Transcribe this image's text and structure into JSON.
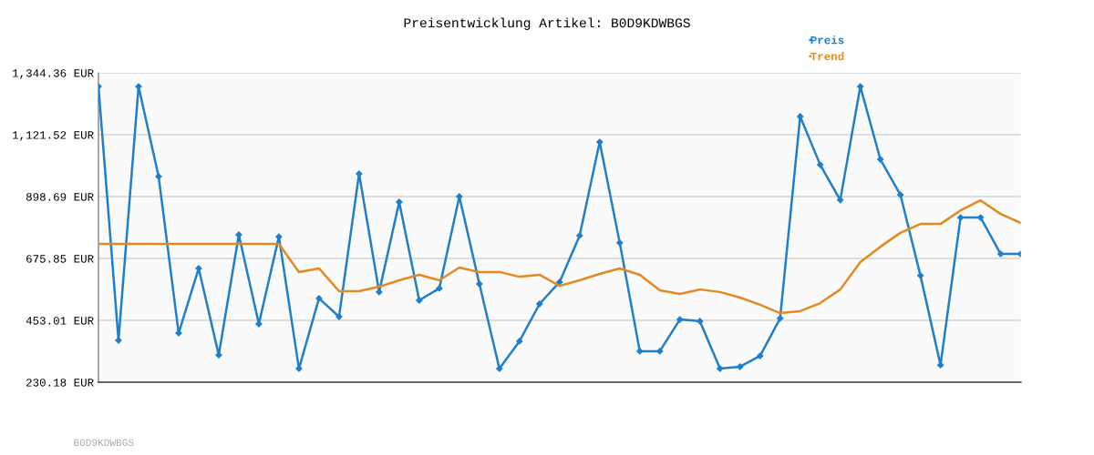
{
  "chart_data": {
    "type": "line",
    "title": "Preisentwicklung Artikel: B0D9KDWBGS",
    "categories": [
      null,
      null,
      null,
      null,
      null,
      null,
      null,
      null,
      null,
      null,
      null,
      null,
      null,
      null,
      null,
      null,
      null,
      null,
      null,
      null,
      null,
      null,
      null,
      null,
      null,
      null,
      null,
      null,
      null,
      null,
      null,
      null,
      null,
      null,
      null,
      null,
      null,
      null,
      null,
      null,
      null,
      null,
      null,
      null,
      null,
      null,
      null
    ],
    "series": [
      {
        "name": "Preis",
        "color": "#1f7fcb",
        "marker": "diamond",
        "values": [
          1295,
          381,
          1295,
          971,
          407,
          640,
          328,
          761,
          440,
          754,
          279,
          532,
          466,
          981,
          555,
          879,
          525,
          568,
          899,
          584,
          279,
          378,
          512,
          591,
          758,
          1095,
          732,
          342,
          342,
          456,
          450,
          279,
          286,
          325,
          460,
          1187,
          1013,
          886,
          1295,
          1033,
          905,
          614,
          292,
          823,
          823,
          692,
          692
        ]
      },
      {
        "name": "Trend",
        "color": "#e4891f",
        "marker": "none",
        "values": [
          728,
          728,
          728,
          728,
          728,
          728,
          728,
          728,
          728,
          728,
          627,
          640,
          558,
          558,
          574,
          597,
          617,
          597,
          643,
          627,
          627,
          610,
          617,
          577,
          597,
          620,
          640,
          617,
          561,
          548,
          564,
          555,
          535,
          509,
          479,
          486,
          515,
          564,
          663,
          718,
          768,
          800,
          800,
          849,
          885,
          836,
          804
        ]
      }
    ],
    "ylim": [
      230.18,
      1344.36
    ],
    "yticks": [
      {
        "value": 230.18,
        "label": "230.18 EUR"
      },
      {
        "value": 453.01,
        "label": "453.01 EUR"
      },
      {
        "value": 675.85,
        "label": "675.85 EUR"
      },
      {
        "value": 898.69,
        "label": "898.69 EUR"
      },
      {
        "value": 1121.52,
        "label": "1,121.52 EUR"
      },
      {
        "value": 1344.36,
        "label": "1,344.36 EUR"
      }
    ],
    "grid": "y",
    "legend": "top right",
    "line_style": "solid",
    "annotations": [
      "B0D9KDWBGS"
    ]
  }
}
